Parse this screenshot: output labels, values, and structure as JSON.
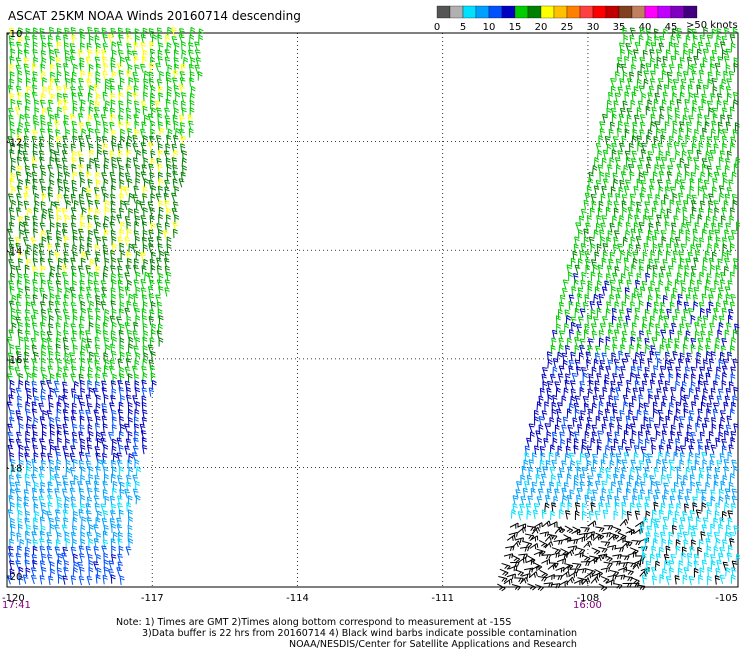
{
  "title": "ASCAT 25KM NOAA Winds 20160714 descending",
  "legend": {
    "unit_label": ">50 knots",
    "ticks": [
      "0",
      "5",
      "10",
      "15",
      "20",
      "25",
      "30",
      "35",
      "40",
      "45"
    ],
    "colors": [
      "#555555",
      "#b0b0b0",
      "#00e0ff",
      "#00a0ff",
      "#0050ff",
      "#0000c0",
      "#00cc00",
      "#008000",
      "#ffff00",
      "#ffc000",
      "#ff8000",
      "#ff4040",
      "#ff0000",
      "#c00000",
      "#804020",
      "#c08060",
      "#ff00ff",
      "#c000ff",
      "#8000c0",
      "#400080"
    ]
  },
  "axes": {
    "lon_labels": [
      "-120",
      "-117",
      "-114",
      "-111",
      "-108",
      "-105"
    ],
    "lat_labels": [
      "-10",
      "-12",
      "-14",
      "-16",
      "-18",
      "-20"
    ],
    "time_left": "17:41",
    "time_right": "16:00"
  },
  "notes": [
    "Note: 1) Times are GMT 2)Times along bottom correspond to measurement at -15S",
    "3)Data buffer is 22 hrs from 20160714 4) Black wind barbs indicate possible contamination",
    "NOAA/NESDIS/Center for Satellite Applications and Research"
  ],
  "swaths": [
    {
      "name": "west-swath",
      "zones": [
        {
          "from_lat": -10,
          "to_lat": -12,
          "color": "#00cc00",
          "accent": "#ffff00"
        },
        {
          "from_lat": -12,
          "to_lat": -14.5,
          "color": "#008000",
          "accent": "#ffff00"
        },
        {
          "from_lat": -14.5,
          "to_lat": -16.5,
          "color": "#00cc00",
          "accent": "#008000"
        },
        {
          "from_lat": -16.5,
          "to_lat": -18,
          "color": "#0000c0",
          "accent": "#0050ff"
        },
        {
          "from_lat": -18,
          "to_lat": -19.5,
          "color": "#00a0ff",
          "accent": "#00e0ff"
        },
        {
          "from_lat": -19.5,
          "to_lat": -20.2,
          "color": "#0050ff",
          "accent": "#0000c0"
        }
      ]
    },
    {
      "name": "east-swath",
      "zones": [
        {
          "from_lat": -10,
          "to_lat": -14.5,
          "color": "#00cc00",
          "accent": "#008000"
        },
        {
          "from_lat": -14.5,
          "to_lat": -16,
          "color": "#00cc00",
          "accent": "#0000c0"
        },
        {
          "from_lat": -16,
          "to_lat": -17.8,
          "color": "#0000c0",
          "accent": "#0050ff"
        },
        {
          "from_lat": -17.8,
          "to_lat": -18.8,
          "color": "#00a0ff",
          "accent": "#00e0ff"
        },
        {
          "from_lat": -18.8,
          "to_lat": -20.2,
          "color": "#00e0ff",
          "accent": "#000000"
        }
      ]
    }
  ]
}
